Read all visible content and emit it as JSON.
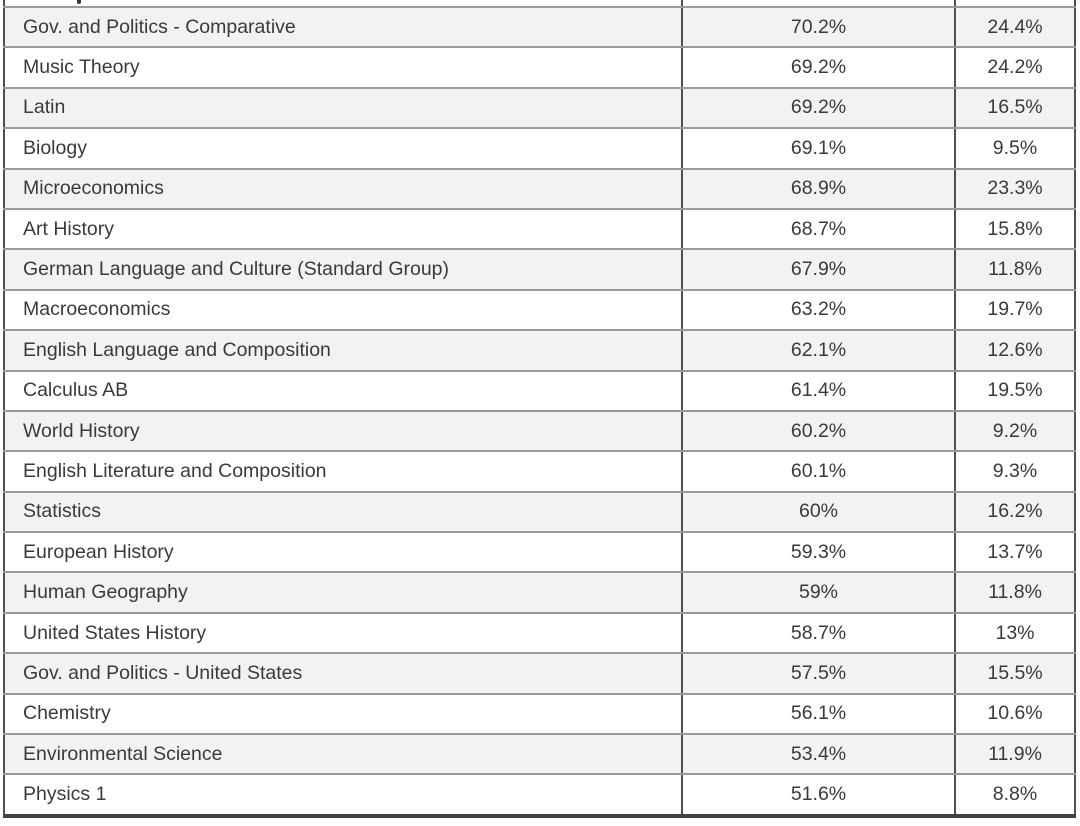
{
  "colors": {
    "page_bg": "#ffffff",
    "row_bg": "#ffffff",
    "row_alt_bg": "#f2f2f2",
    "row_border": "#9a9a9a",
    "col_border": "#4f4f4f",
    "bottom_border": "#424242",
    "text": "#3a3a3a"
  },
  "table": {
    "rows": [
      {
        "subject": "Gov. and Politics - Comparative",
        "value1": "70.2%",
        "value2": "24.4%"
      },
      {
        "subject": "Music Theory",
        "value1": "69.2%",
        "value2": "24.2%"
      },
      {
        "subject": "Latin",
        "value1": "69.2%",
        "value2": "16.5%"
      },
      {
        "subject": "Biology",
        "value1": "69.1%",
        "value2": "9.5%"
      },
      {
        "subject": "Microeconomics",
        "value1": "68.9%",
        "value2": "23.3%"
      },
      {
        "subject": "Art History",
        "value1": "68.7%",
        "value2": "15.8%"
      },
      {
        "subject": "German Language and Culture (Standard Group)",
        "value1": "67.9%",
        "value2": "11.8%"
      },
      {
        "subject": "Macroeconomics",
        "value1": "63.2%",
        "value2": "19.7%"
      },
      {
        "subject": "English Language and Composition",
        "value1": "62.1%",
        "value2": "12.6%"
      },
      {
        "subject": "Calculus AB",
        "value1": "61.4%",
        "value2": "19.5%"
      },
      {
        "subject": "World History",
        "value1": "60.2%",
        "value2": "9.2%"
      },
      {
        "subject": "English Literature and Composition",
        "value1": "60.1%",
        "value2": "9.3%"
      },
      {
        "subject": "Statistics",
        "value1": "60%",
        "value2": "16.2%"
      },
      {
        "subject": "European History",
        "value1": "59.3%",
        "value2": "13.7%"
      },
      {
        "subject": "Human Geography",
        "value1": "59%",
        "value2": "11.8%"
      },
      {
        "subject": "United States History",
        "value1": "58.7%",
        "value2": "13%"
      },
      {
        "subject": "Gov. and Politics - United States",
        "value1": "57.5%",
        "value2": "15.5%"
      },
      {
        "subject": "Chemistry",
        "value1": "56.1%",
        "value2": "10.6%"
      },
      {
        "subject": "Environmental Science",
        "value1": "53.4%",
        "value2": "11.9%"
      },
      {
        "subject": "Physics 1",
        "value1": "51.6%",
        "value2": "8.8%"
      }
    ]
  }
}
